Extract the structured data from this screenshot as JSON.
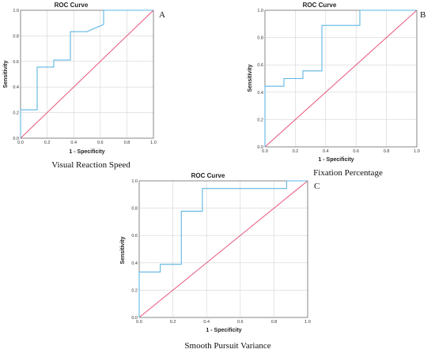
{
  "chart_data": [
    {
      "type": "line",
      "panel_label": "A",
      "title": "ROC Curve",
      "xlabel": "1 - Specificity",
      "ylabel": "Sensitivity",
      "caption": "Visual Reaction Speed",
      "xlim": [
        0,
        1
      ],
      "ylim": [
        0,
        1
      ],
      "xticks": [
        "0.0",
        "0.2",
        "0.4",
        "0.6",
        "0.8",
        "1.0"
      ],
      "yticks": [
        "0.0",
        "0.2",
        "0.4",
        "0.6",
        "0.8",
        "1.0"
      ],
      "grid": true,
      "roc": {
        "color": "#5fb6e3",
        "x": [
          0,
          0,
          0.125,
          0.125,
          0.25,
          0.25,
          0.375,
          0.375,
          0.5,
          0.625,
          0.625,
          1
        ],
        "y": [
          0,
          0.222,
          0.222,
          0.556,
          0.556,
          0.611,
          0.611,
          0.833,
          0.833,
          0.889,
          1,
          1
        ]
      },
      "reference": {
        "color": "#e8557a",
        "x": [
          0,
          1
        ],
        "y": [
          0,
          1
        ]
      }
    },
    {
      "type": "line",
      "panel_label": "B",
      "title": "ROC Curve",
      "xlabel": "1 - Specificity",
      "ylabel": "Sensitivity",
      "caption": "Fixation Percentage",
      "xlim": [
        0,
        1
      ],
      "ylim": [
        0,
        1
      ],
      "xticks": [
        "0.0",
        "0.2",
        "0.4",
        "0.6",
        "0.8",
        "1.0"
      ],
      "yticks": [
        "0.0",
        "0.2",
        "0.4",
        "0.6",
        "0.8",
        "1.0"
      ],
      "grid": true,
      "roc": {
        "color": "#5fb6e3",
        "x": [
          0,
          0,
          0.125,
          0.125,
          0.25,
          0.25,
          0.375,
          0.375,
          0.625,
          0.625,
          1
        ],
        "y": [
          0,
          0.444,
          0.444,
          0.5,
          0.5,
          0.556,
          0.556,
          0.889,
          0.889,
          1,
          1
        ]
      },
      "reference": {
        "color": "#e8557a",
        "x": [
          0,
          1
        ],
        "y": [
          0,
          1
        ]
      }
    },
    {
      "type": "line",
      "panel_label": "C",
      "title": "ROC Curve",
      "xlabel": "1 - Specificity",
      "ylabel": "Sensitivity",
      "caption": "Smooth Pursuit Variance",
      "xlim": [
        0,
        1
      ],
      "ylim": [
        0,
        1
      ],
      "xticks": [
        "0.0",
        "0.2",
        "0.4",
        "0.6",
        "0.8",
        "1.0"
      ],
      "yticks": [
        "0.0",
        "0.2",
        "0.4",
        "0.6",
        "0.8",
        "1.0"
      ],
      "grid": true,
      "roc": {
        "color": "#5fb6e3",
        "x": [
          0,
          0,
          0.125,
          0.125,
          0.25,
          0.25,
          0.375,
          0.375,
          0.875,
          0.875,
          1
        ],
        "y": [
          0,
          0.333,
          0.333,
          0.389,
          0.389,
          0.778,
          0.778,
          0.944,
          0.944,
          1,
          1
        ]
      },
      "reference": {
        "color": "#e8557a",
        "x": [
          0,
          1
        ],
        "y": [
          0,
          1
        ]
      }
    }
  ]
}
